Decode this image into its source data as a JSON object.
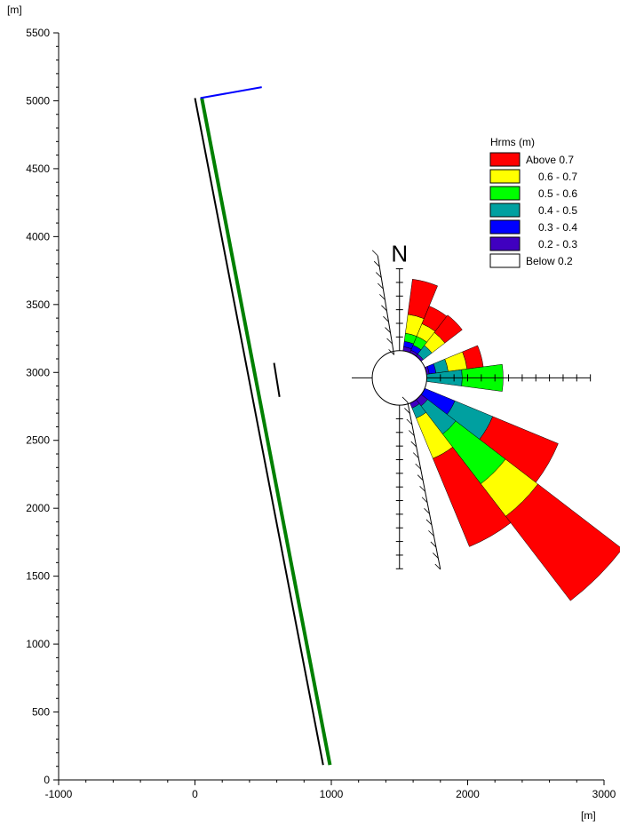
{
  "chart_data": {
    "type": "map_plot_with_wave_rose",
    "units": {
      "x": "[m]",
      "y": "[m]"
    },
    "xlim": [
      -1000,
      3000
    ],
    "ylim": [
      0,
      5500
    ],
    "xticks": [
      -1000,
      0,
      1000,
      2000,
      3000
    ],
    "yticks": [
      0,
      500,
      1000,
      1500,
      2000,
      2500,
      3000,
      3500,
      4000,
      4500,
      5000,
      5500
    ],
    "lines": [
      {
        "name": "coastline",
        "color": "#000000",
        "points": [
          [
            0,
            5020
          ],
          [
            940,
            110
          ]
        ]
      },
      {
        "name": "green-line",
        "color": "#008000",
        "points": [
          [
            50,
            5020
          ],
          [
            990,
            110
          ]
        ]
      },
      {
        "name": "blue-line",
        "color": "#0000ff",
        "points": [
          [
            40,
            5020
          ],
          [
            490,
            5100
          ]
        ]
      },
      {
        "name": "short-segment",
        "color": "#000000",
        "points": [
          [
            580,
            3070
          ],
          [
            620,
            2820
          ]
        ]
      }
    ],
    "wave_rose": {
      "north_label": "N",
      "center": [
        1500,
        2960
      ],
      "inner_radius": 200,
      "ring_step": 100,
      "rings": 12,
      "sector_width_deg": 15,
      "legend": {
        "title": "Hrms (m)",
        "classes": [
          {
            "label": "Above 0.7",
            "color": "#ff0000"
          },
          {
            "label": "0.6 - 0.7",
            "color": "#ffff00"
          },
          {
            "label": "0.5 - 0.6",
            "color": "#00ff00"
          },
          {
            "label": "0.4 - 0.5",
            "color": "#00a0a0"
          },
          {
            "label": "0.3 - 0.4",
            "color": "#0000ff"
          },
          {
            "label": "0.2 - 0.3",
            "color": "#4000c0"
          },
          {
            "label": "Below 0.2",
            "color": "#ffffff"
          }
        ]
      },
      "sectors": [
        {
          "dir": 15,
          "bands": [
            260,
            140,
            60,
            0,
            40,
            30,
            0
          ]
        },
        {
          "dir": 30,
          "bands": [
            140,
            100,
            70,
            0,
            40,
            20,
            0
          ]
        },
        {
          "dir": 45,
          "bands": [
            160,
            120,
            0,
            80,
            0,
            20,
            0
          ]
        },
        {
          "dir": 75,
          "bands": [
            120,
            140,
            0,
            90,
            50,
            20,
            0
          ]
        },
        {
          "dir": 90,
          "bands": [
            0,
            0,
            300,
            260,
            0,
            0,
            80
          ]
        },
        {
          "dir": 105,
          "bands": [
            0,
            0,
            0,
            0,
            0,
            0,
            0
          ]
        },
        {
          "dir": 120,
          "bands": [
            520,
            0,
            0,
            300,
            240,
            0,
            240
          ]
        },
        {
          "dir": 135,
          "bands": [
            780,
            300,
            460,
            260,
            0,
            60,
            0
          ]
        },
        {
          "dir": 150,
          "bands": [
            700,
            320,
            0,
            80,
            0,
            40,
            0
          ]
        }
      ],
      "guide_segments": [
        {
          "name": "hatch-line-upper",
          "points": [
            [
              1340,
              3860
            ],
            [
              1460,
              3130
            ]
          ]
        },
        {
          "name": "hatch-line-lower",
          "points": [
            [
              1560,
              2780
            ],
            [
              1800,
              1550
            ]
          ]
        }
      ]
    }
  }
}
